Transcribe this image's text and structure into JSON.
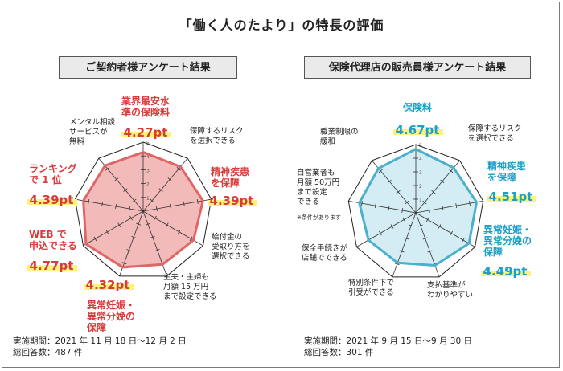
{
  "title": "「働く人のたより」の特長の評価",
  "chart_data": [
    {
      "type": "radar",
      "title": "ご契約者様アンケート結果",
      "max": 5,
      "scale_labels": [
        "1",
        "2",
        "3",
        "4",
        "5"
      ],
      "accent": "#e06666",
      "fill": "#f2b3b3",
      "highlight": "#fff27a",
      "text_color": "#d93a3a",
      "axes": [
        {
          "label": "業界最安水\n準の保険料",
          "value": 4.27,
          "score": "4.27pt",
          "highlighted": true
        },
        {
          "label": "保障するリスク\nを選択できる",
          "value": 4.2,
          "score": "",
          "highlighted": false
        },
        {
          "label": "精神疾患\nを保障",
          "value": 4.39,
          "score": "4.39pt",
          "highlighted": true
        },
        {
          "label": "給付金の\n受取り方を\n選択できる",
          "value": 4.2,
          "score": "",
          "highlighted": false
        },
        {
          "label": "主夫・主婦も\n月額 15 万円\nまで設定できる",
          "value": 4.1,
          "score": "",
          "highlighted": false
        },
        {
          "label": "異常妊娠・\n異常分娩の\n保障",
          "value": 4.32,
          "score": "4.32pt",
          "highlighted": true
        },
        {
          "label": "WEB で\n申込できる",
          "value": 4.77,
          "score": "4.77pt",
          "highlighted": true
        },
        {
          "label": "ランキング\nで 1 位",
          "value": 4.39,
          "score": "4.39pt",
          "highlighted": true
        },
        {
          "label": "メンタル相談\nサービスが\n無料",
          "value": 4.3,
          "score": "",
          "highlighted": false
        }
      ],
      "footer": [
        "実施期間：2021 年 11 月 18 日～12 月 2 日",
        "総回答数：487 件"
      ]
    },
    {
      "type": "radar",
      "title": "保険代理店の販売員様アンケート結果",
      "max": 5,
      "scale_labels": [
        "1",
        "2",
        "3",
        "4",
        "5"
      ],
      "accent": "#4ab0cc",
      "fill": "#cfeaf3",
      "highlight": "#fff27a",
      "text_color": "#1e9fc6",
      "axes": [
        {
          "label": "保険料",
          "value": 4.67,
          "score": "4.67pt",
          "highlighted": true
        },
        {
          "label": "保障するリスク\nを選択できる",
          "value": 4.3,
          "score": "",
          "highlighted": false
        },
        {
          "label": "精神疾患\nを保障",
          "value": 4.51,
          "score": "4.51pt",
          "highlighted": true
        },
        {
          "label": "異常妊娠・\n異常分娩の\n保障",
          "value": 4.49,
          "score": "4.49pt",
          "highlighted": true
        },
        {
          "label": "支払基準が\nわかりやすい",
          "value": 4.1,
          "score": "",
          "highlighted": false
        },
        {
          "label": "特別条件下で\n引受ができる",
          "value": 3.9,
          "score": "",
          "highlighted": false
        },
        {
          "label": "保全手続きが\n店舗でできる",
          "value": 4.0,
          "score": "",
          "highlighted": false
        },
        {
          "label": "自営業者も\n月額 50万円\nまで設定\nできる",
          "value": 4.2,
          "score": "",
          "highlighted": false
        },
        {
          "label": "職業制限の\n緩和",
          "value": 4.25,
          "score": "",
          "highlighted": false
        }
      ],
      "note": "※条件があります",
      "footer": [
        "実施期間：2021 年 9 月 15 日～9 月 30 日",
        "総回答数：301 件"
      ]
    }
  ]
}
